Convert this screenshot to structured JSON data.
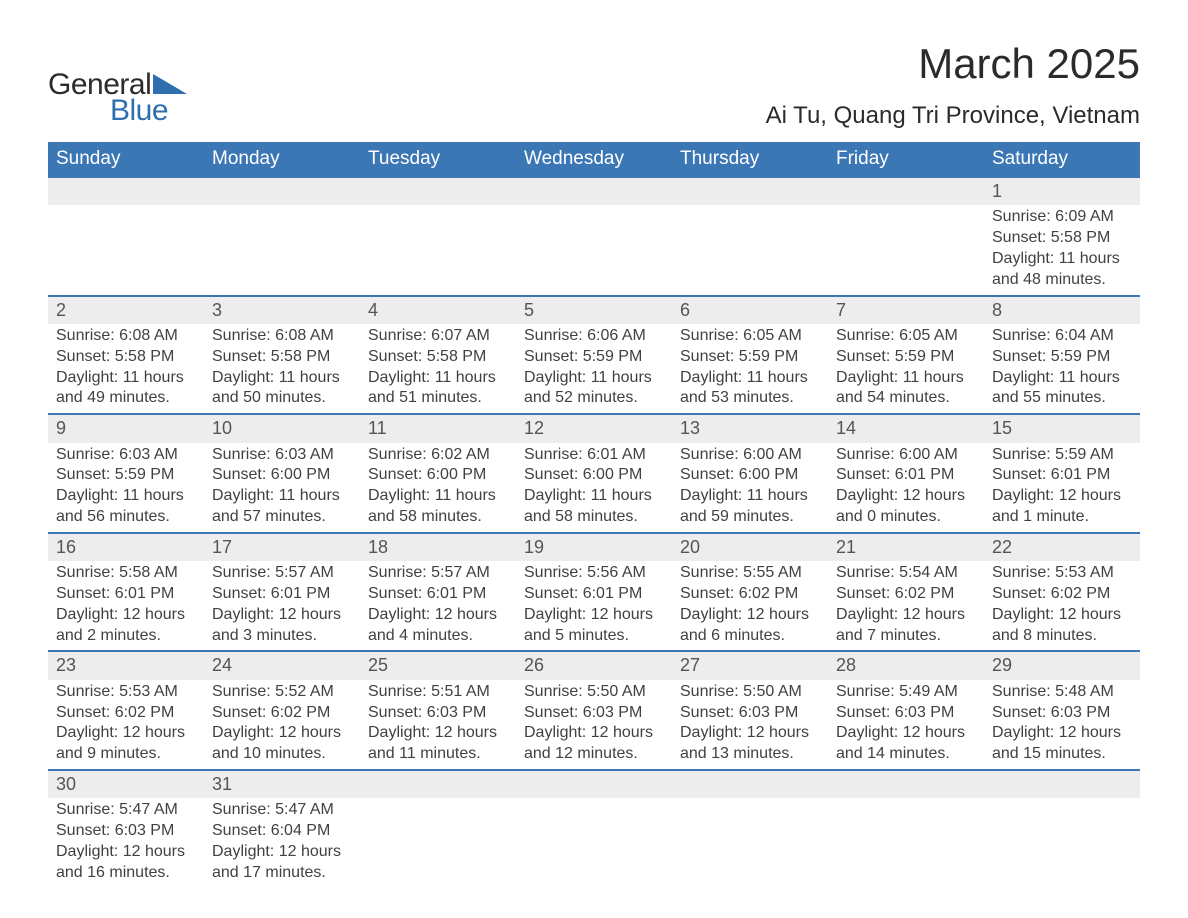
{
  "logo": {
    "word1": "General",
    "word2": "Blue",
    "text_color_1": "#2b2b2b",
    "text_color_2": "#2f6fb0",
    "triangle_color": "#2f6fb0"
  },
  "title": {
    "main": "March 2025",
    "sub": "Ai Tu, Quang Tri Province, Vietnam",
    "main_fontsize": 42,
    "sub_fontsize": 24,
    "color": "#2b2b2b"
  },
  "calendar": {
    "header_bg": "#3b76b5",
    "header_text_color": "#ffffff",
    "header_fontsize": 19,
    "daynum_bg": "#ededed",
    "daynum_border_top": "#3b76b5",
    "daynum_color": "#555555",
    "cell_text_color": "#414141",
    "cell_fontsize": 16,
    "columns": [
      "Sunday",
      "Monday",
      "Tuesday",
      "Wednesday",
      "Thursday",
      "Friday",
      "Saturday"
    ],
    "weeks": [
      [
        null,
        null,
        null,
        null,
        null,
        null,
        {
          "d": "1",
          "sunrise": "Sunrise: 6:09 AM",
          "sunset": "Sunset: 5:58 PM",
          "dl1": "Daylight: 11 hours",
          "dl2": "and 48 minutes."
        }
      ],
      [
        {
          "d": "2",
          "sunrise": "Sunrise: 6:08 AM",
          "sunset": "Sunset: 5:58 PM",
          "dl1": "Daylight: 11 hours",
          "dl2": "and 49 minutes."
        },
        {
          "d": "3",
          "sunrise": "Sunrise: 6:08 AM",
          "sunset": "Sunset: 5:58 PM",
          "dl1": "Daylight: 11 hours",
          "dl2": "and 50 minutes."
        },
        {
          "d": "4",
          "sunrise": "Sunrise: 6:07 AM",
          "sunset": "Sunset: 5:58 PM",
          "dl1": "Daylight: 11 hours",
          "dl2": "and 51 minutes."
        },
        {
          "d": "5",
          "sunrise": "Sunrise: 6:06 AM",
          "sunset": "Sunset: 5:59 PM",
          "dl1": "Daylight: 11 hours",
          "dl2": "and 52 minutes."
        },
        {
          "d": "6",
          "sunrise": "Sunrise: 6:05 AM",
          "sunset": "Sunset: 5:59 PM",
          "dl1": "Daylight: 11 hours",
          "dl2": "and 53 minutes."
        },
        {
          "d": "7",
          "sunrise": "Sunrise: 6:05 AM",
          "sunset": "Sunset: 5:59 PM",
          "dl1": "Daylight: 11 hours",
          "dl2": "and 54 minutes."
        },
        {
          "d": "8",
          "sunrise": "Sunrise: 6:04 AM",
          "sunset": "Sunset: 5:59 PM",
          "dl1": "Daylight: 11 hours",
          "dl2": "and 55 minutes."
        }
      ],
      [
        {
          "d": "9",
          "sunrise": "Sunrise: 6:03 AM",
          "sunset": "Sunset: 5:59 PM",
          "dl1": "Daylight: 11 hours",
          "dl2": "and 56 minutes."
        },
        {
          "d": "10",
          "sunrise": "Sunrise: 6:03 AM",
          "sunset": "Sunset: 6:00 PM",
          "dl1": "Daylight: 11 hours",
          "dl2": "and 57 minutes."
        },
        {
          "d": "11",
          "sunrise": "Sunrise: 6:02 AM",
          "sunset": "Sunset: 6:00 PM",
          "dl1": "Daylight: 11 hours",
          "dl2": "and 58 minutes."
        },
        {
          "d": "12",
          "sunrise": "Sunrise: 6:01 AM",
          "sunset": "Sunset: 6:00 PM",
          "dl1": "Daylight: 11 hours",
          "dl2": "and 58 minutes."
        },
        {
          "d": "13",
          "sunrise": "Sunrise: 6:00 AM",
          "sunset": "Sunset: 6:00 PM",
          "dl1": "Daylight: 11 hours",
          "dl2": "and 59 minutes."
        },
        {
          "d": "14",
          "sunrise": "Sunrise: 6:00 AM",
          "sunset": "Sunset: 6:01 PM",
          "dl1": "Daylight: 12 hours",
          "dl2": "and 0 minutes."
        },
        {
          "d": "15",
          "sunrise": "Sunrise: 5:59 AM",
          "sunset": "Sunset: 6:01 PM",
          "dl1": "Daylight: 12 hours",
          "dl2": "and 1 minute."
        }
      ],
      [
        {
          "d": "16",
          "sunrise": "Sunrise: 5:58 AM",
          "sunset": "Sunset: 6:01 PM",
          "dl1": "Daylight: 12 hours",
          "dl2": "and 2 minutes."
        },
        {
          "d": "17",
          "sunrise": "Sunrise: 5:57 AM",
          "sunset": "Sunset: 6:01 PM",
          "dl1": "Daylight: 12 hours",
          "dl2": "and 3 minutes."
        },
        {
          "d": "18",
          "sunrise": "Sunrise: 5:57 AM",
          "sunset": "Sunset: 6:01 PM",
          "dl1": "Daylight: 12 hours",
          "dl2": "and 4 minutes."
        },
        {
          "d": "19",
          "sunrise": "Sunrise: 5:56 AM",
          "sunset": "Sunset: 6:01 PM",
          "dl1": "Daylight: 12 hours",
          "dl2": "and 5 minutes."
        },
        {
          "d": "20",
          "sunrise": "Sunrise: 5:55 AM",
          "sunset": "Sunset: 6:02 PM",
          "dl1": "Daylight: 12 hours",
          "dl2": "and 6 minutes."
        },
        {
          "d": "21",
          "sunrise": "Sunrise: 5:54 AM",
          "sunset": "Sunset: 6:02 PM",
          "dl1": "Daylight: 12 hours",
          "dl2": "and 7 minutes."
        },
        {
          "d": "22",
          "sunrise": "Sunrise: 5:53 AM",
          "sunset": "Sunset: 6:02 PM",
          "dl1": "Daylight: 12 hours",
          "dl2": "and 8 minutes."
        }
      ],
      [
        {
          "d": "23",
          "sunrise": "Sunrise: 5:53 AM",
          "sunset": "Sunset: 6:02 PM",
          "dl1": "Daylight: 12 hours",
          "dl2": "and 9 minutes."
        },
        {
          "d": "24",
          "sunrise": "Sunrise: 5:52 AM",
          "sunset": "Sunset: 6:02 PM",
          "dl1": "Daylight: 12 hours",
          "dl2": "and 10 minutes."
        },
        {
          "d": "25",
          "sunrise": "Sunrise: 5:51 AM",
          "sunset": "Sunset: 6:03 PM",
          "dl1": "Daylight: 12 hours",
          "dl2": "and 11 minutes."
        },
        {
          "d": "26",
          "sunrise": "Sunrise: 5:50 AM",
          "sunset": "Sunset: 6:03 PM",
          "dl1": "Daylight: 12 hours",
          "dl2": "and 12 minutes."
        },
        {
          "d": "27",
          "sunrise": "Sunrise: 5:50 AM",
          "sunset": "Sunset: 6:03 PM",
          "dl1": "Daylight: 12 hours",
          "dl2": "and 13 minutes."
        },
        {
          "d": "28",
          "sunrise": "Sunrise: 5:49 AM",
          "sunset": "Sunset: 6:03 PM",
          "dl1": "Daylight: 12 hours",
          "dl2": "and 14 minutes."
        },
        {
          "d": "29",
          "sunrise": "Sunrise: 5:48 AM",
          "sunset": "Sunset: 6:03 PM",
          "dl1": "Daylight: 12 hours",
          "dl2": "and 15 minutes."
        }
      ],
      [
        {
          "d": "30",
          "sunrise": "Sunrise: 5:47 AM",
          "sunset": "Sunset: 6:03 PM",
          "dl1": "Daylight: 12 hours",
          "dl2": "and 16 minutes."
        },
        {
          "d": "31",
          "sunrise": "Sunrise: 5:47 AM",
          "sunset": "Sunset: 6:04 PM",
          "dl1": "Daylight: 12 hours",
          "dl2": "and 17 minutes."
        },
        null,
        null,
        null,
        null,
        null
      ]
    ]
  }
}
